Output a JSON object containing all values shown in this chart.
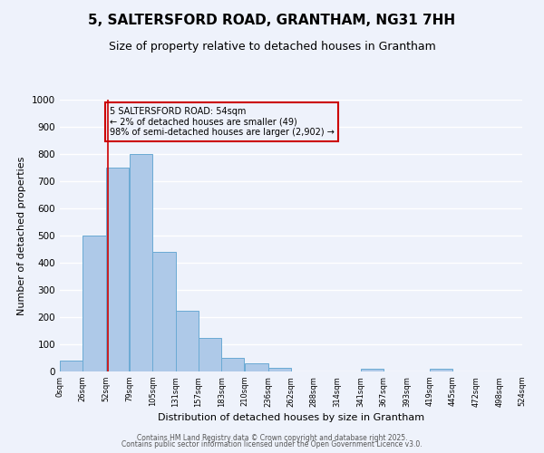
{
  "title": "5, SALTERSFORD ROAD, GRANTHAM, NG31 7HH",
  "subtitle": "Size of property relative to detached houses in Grantham",
  "xlabel": "Distribution of detached houses by size in Grantham",
  "ylabel": "Number of detached properties",
  "bar_left_edges": [
    0,
    26,
    52,
    79,
    105,
    131,
    157,
    183,
    210,
    236,
    262,
    288,
    314,
    341,
    367,
    393,
    419,
    445,
    472,
    498
  ],
  "bar_widths": [
    26,
    26,
    26,
    26,
    26,
    26,
    26,
    26,
    26,
    26,
    26,
    26,
    26,
    26,
    26,
    26,
    26,
    26,
    26,
    26
  ],
  "bar_heights": [
    40,
    500,
    750,
    800,
    440,
    225,
    125,
    50,
    30,
    15,
    0,
    0,
    0,
    10,
    0,
    0,
    10,
    0,
    0,
    0
  ],
  "bar_color": "#aec9e8",
  "bar_edge_color": "#6aaad4",
  "tick_labels": [
    "0sqm",
    "26sqm",
    "52sqm",
    "79sqm",
    "105sqm",
    "131sqm",
    "157sqm",
    "183sqm",
    "210sqm",
    "236sqm",
    "262sqm",
    "288sqm",
    "314sqm",
    "341sqm",
    "367sqm",
    "393sqm",
    "419sqm",
    "445sqm",
    "472sqm",
    "498sqm",
    "524sqm"
  ],
  "ylim": [
    0,
    1000
  ],
  "xlim": [
    0,
    524
  ],
  "yticks": [
    0,
    100,
    200,
    300,
    400,
    500,
    600,
    700,
    800,
    900,
    1000
  ],
  "vline_x": 54,
  "vline_color": "#cc0000",
  "annotation_title": "5 SALTERSFORD ROAD: 54sqm",
  "annotation_line1": "← 2% of detached houses are smaller (49)",
  "annotation_line2": "98% of semi-detached houses are larger (2,902) →",
  "annotation_box_color": "#cc0000",
  "background_color": "#eef2fb",
  "grid_color": "#ffffff",
  "footer1": "Contains HM Land Registry data © Crown copyright and database right 2025.",
  "footer2": "Contains public sector information licensed under the Open Government Licence v3.0.",
  "title_fontsize": 11,
  "subtitle_fontsize": 9,
  "xlabel_fontsize": 8,
  "ylabel_fontsize": 8
}
